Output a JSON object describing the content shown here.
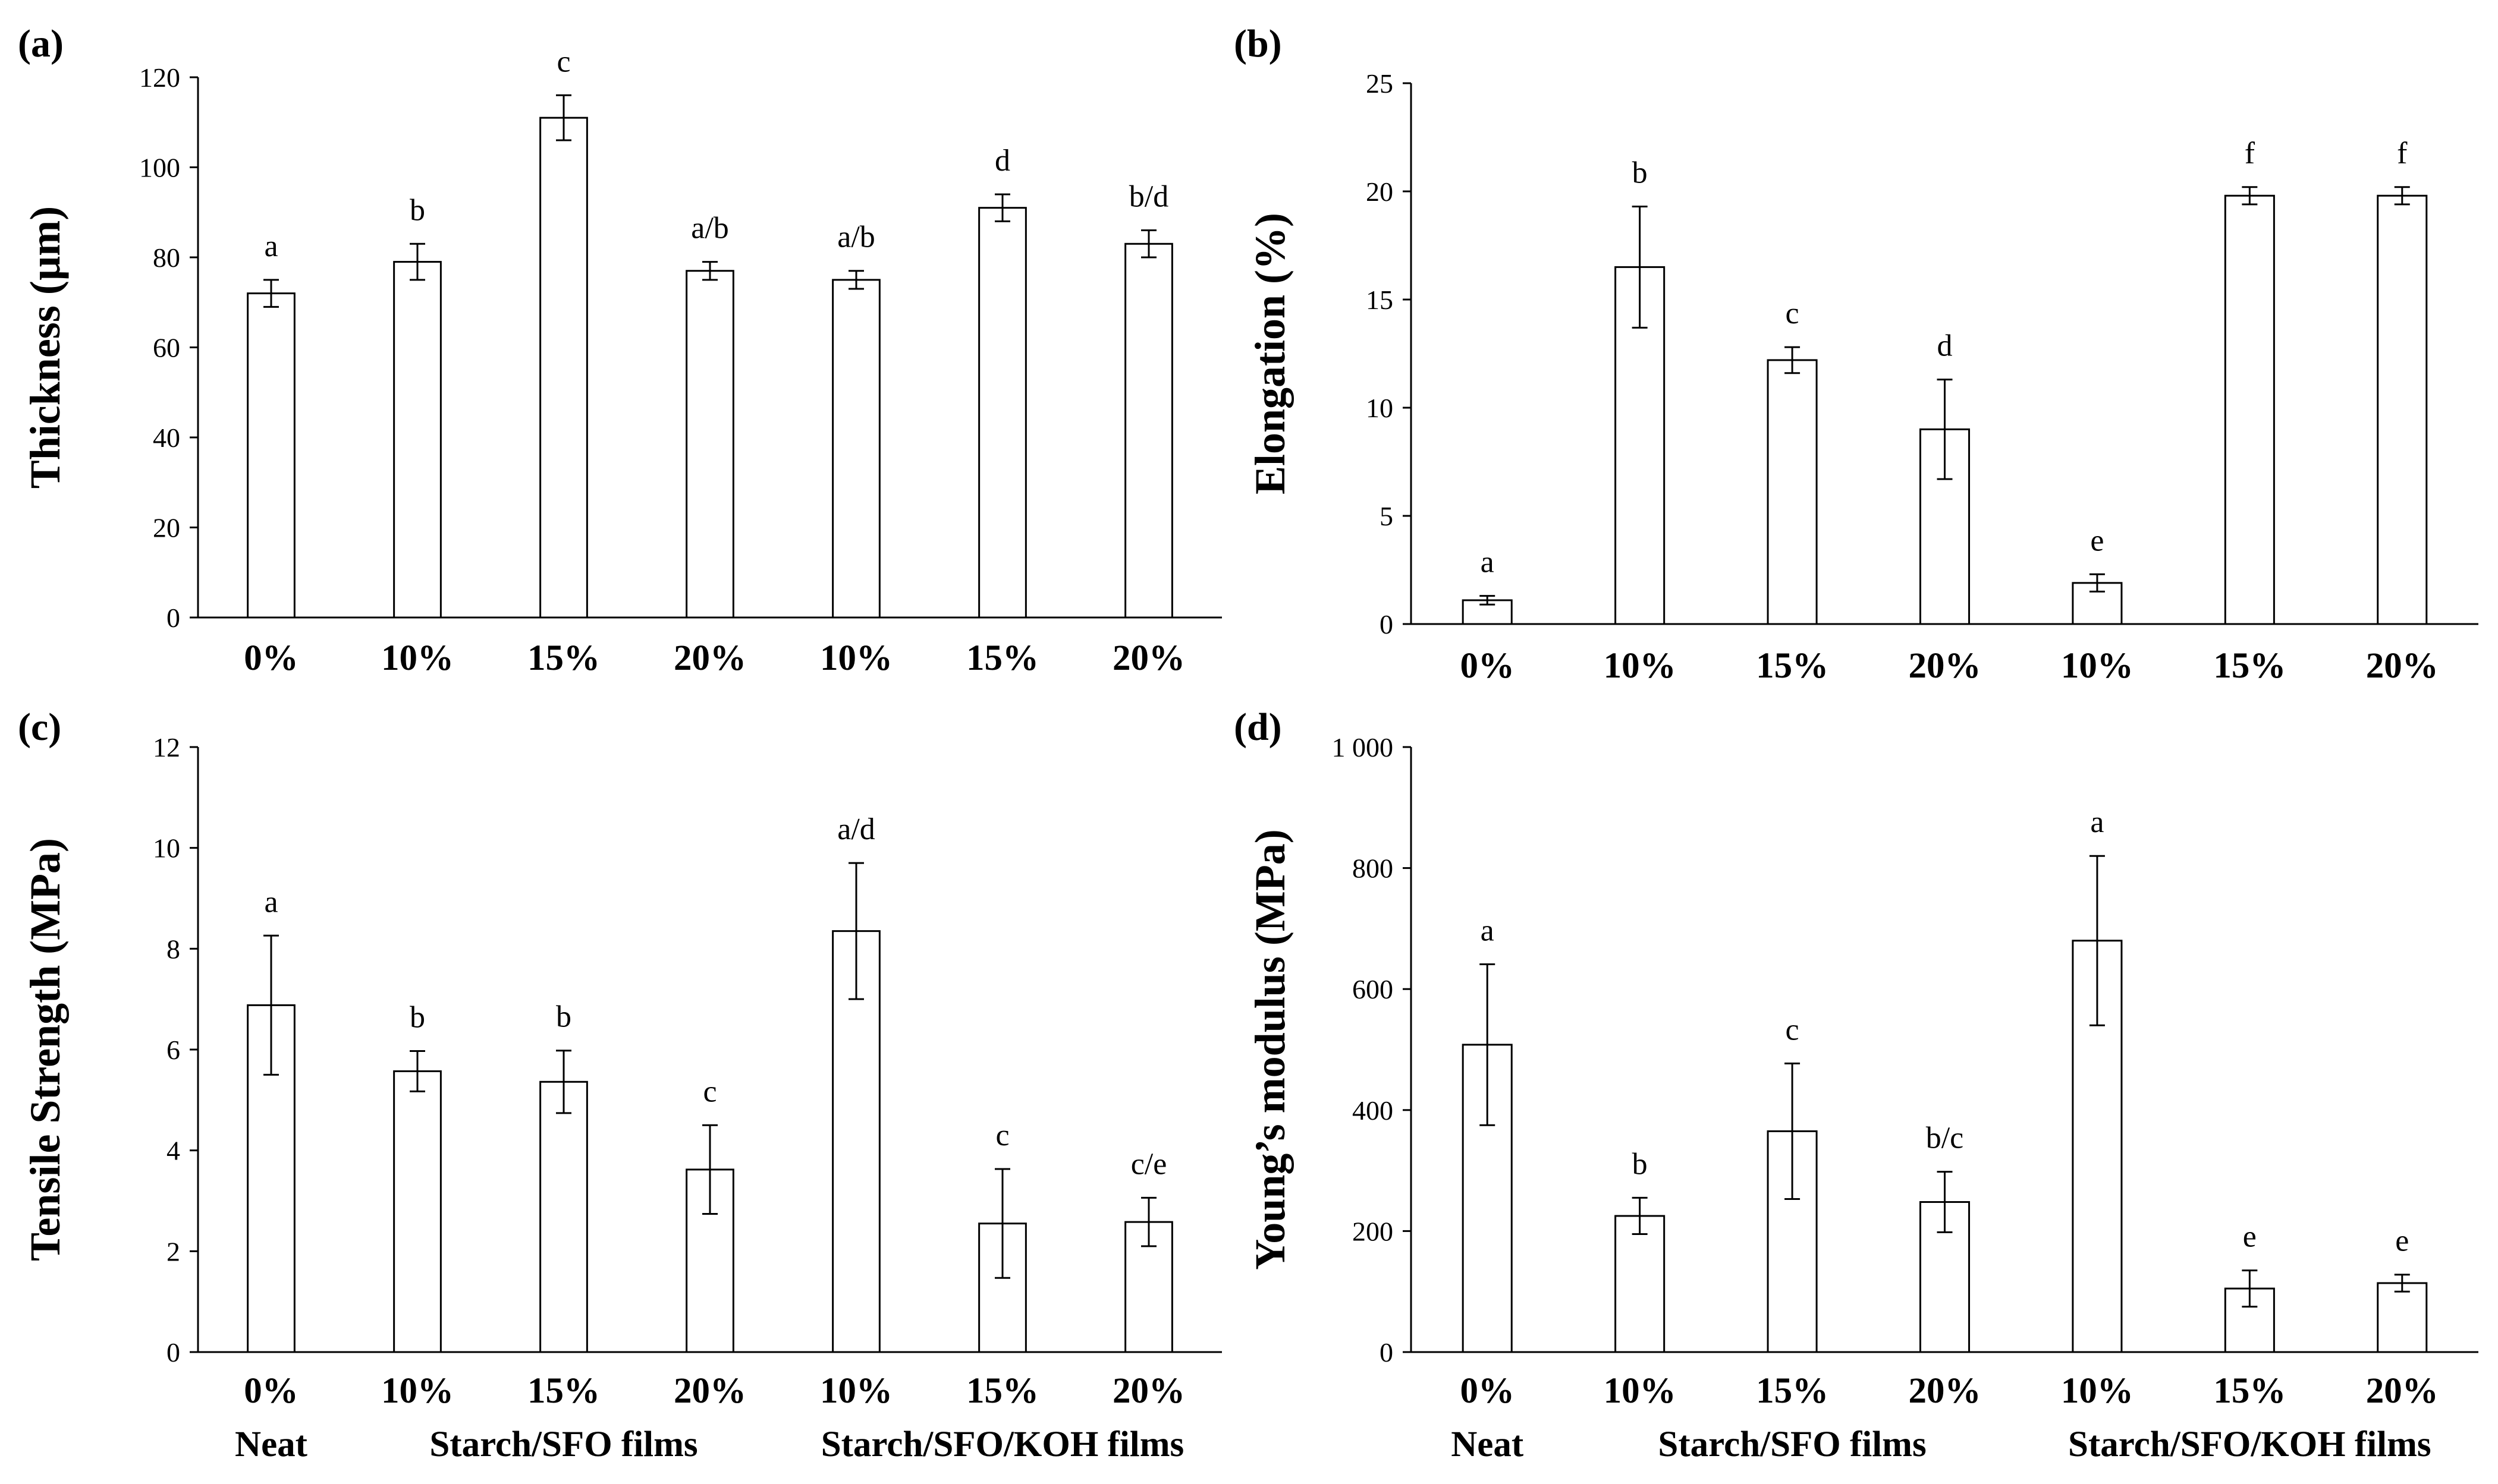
{
  "chart_data": [
    {
      "panel_label": "(a)",
      "type": "bar",
      "ylabel": "Thickness (µm)",
      "ylim": [
        0,
        120
      ],
      "yticks": [
        0,
        20,
        40,
        60,
        80,
        100,
        120
      ],
      "ytick_labels": [
        "0",
        "20",
        "40",
        "60",
        "80",
        "100",
        "120"
      ],
      "categories": [
        "0%",
        "10%",
        "15%",
        "20%",
        "10%",
        "15%",
        "20%"
      ],
      "groups": [],
      "values": [
        72,
        79,
        111,
        77,
        75,
        91,
        83
      ],
      "errors": [
        3,
        4,
        5,
        2,
        2,
        3,
        3
      ],
      "letters": [
        "a",
        "b",
        "c",
        "a/b",
        "a/b",
        "d",
        "b/d"
      ]
    },
    {
      "panel_label": "(b)",
      "type": "bar",
      "ylabel": "Elongation (%)",
      "ylim": [
        0,
        25
      ],
      "yticks": [
        0,
        5,
        10,
        15,
        20,
        25
      ],
      "ytick_labels": [
        "0",
        "5",
        "10",
        "15",
        "20",
        "25"
      ],
      "categories": [
        "0%",
        "10%",
        "15%",
        "20%",
        "10%",
        "15%",
        "20%"
      ],
      "groups": [],
      "values": [
        1.1,
        16.5,
        12.2,
        9.0,
        1.9,
        19.8,
        19.8
      ],
      "errors": [
        0.2,
        2.8,
        0.6,
        2.3,
        0.4,
        0.4,
        0.4
      ],
      "letters": [
        "a",
        "b",
        "c",
        "d",
        "e",
        "f",
        "f"
      ]
    },
    {
      "panel_label": "(c)",
      "type": "bar",
      "ylabel": "Tensile Strength (MPa)",
      "ylim": [
        0,
        12
      ],
      "yticks": [
        0,
        2,
        4,
        6,
        8,
        10,
        12
      ],
      "ytick_labels": [
        "0",
        "2",
        "4",
        "6",
        "8",
        "10",
        "12"
      ],
      "categories": [
        "0%",
        "10%",
        "15%",
        "20%",
        "10%",
        "15%",
        "20%"
      ],
      "groups": [
        {
          "label": "Neat",
          "span": [
            0,
            0
          ]
        },
        {
          "label": "Starch/SFO films",
          "span": [
            1,
            3
          ]
        },
        {
          "label": "Starch/SFO/KOH films",
          "span": [
            4,
            6
          ]
        }
      ],
      "values": [
        6.88,
        5.57,
        5.36,
        3.62,
        8.35,
        2.55,
        2.58
      ],
      "errors": [
        1.38,
        0.4,
        0.62,
        0.88,
        1.35,
        1.08,
        0.48
      ],
      "letters": [
        "a",
        "b",
        "b",
        "c",
        "a/d",
        "c",
        "c/e"
      ]
    },
    {
      "panel_label": "(d)",
      "type": "bar",
      "ylabel": "Young’s modulus (MPa)",
      "ylim": [
        0,
        1000
      ],
      "yticks": [
        0,
        200,
        400,
        600,
        800,
        1000
      ],
      "ytick_labels": [
        "0",
        "200",
        "400",
        "600",
        "800",
        "1 000"
      ],
      "categories": [
        "0%",
        "10%",
        "15%",
        "20%",
        "10%",
        "15%",
        "20%"
      ],
      "groups": [
        {
          "label": "Neat",
          "span": [
            0,
            0
          ]
        },
        {
          "label": "Starch/SFO films",
          "span": [
            1,
            3
          ]
        },
        {
          "label": "Starch/SFO/KOH films",
          "span": [
            4,
            6
          ]
        }
      ],
      "values": [
        508,
        225,
        365,
        248,
        680,
        105,
        114
      ],
      "errors": [
        133,
        30,
        112,
        50,
        140,
        30,
        14
      ],
      "letters": [
        "a",
        "b",
        "c",
        "b/c",
        "a",
        "e",
        "e"
      ]
    }
  ]
}
